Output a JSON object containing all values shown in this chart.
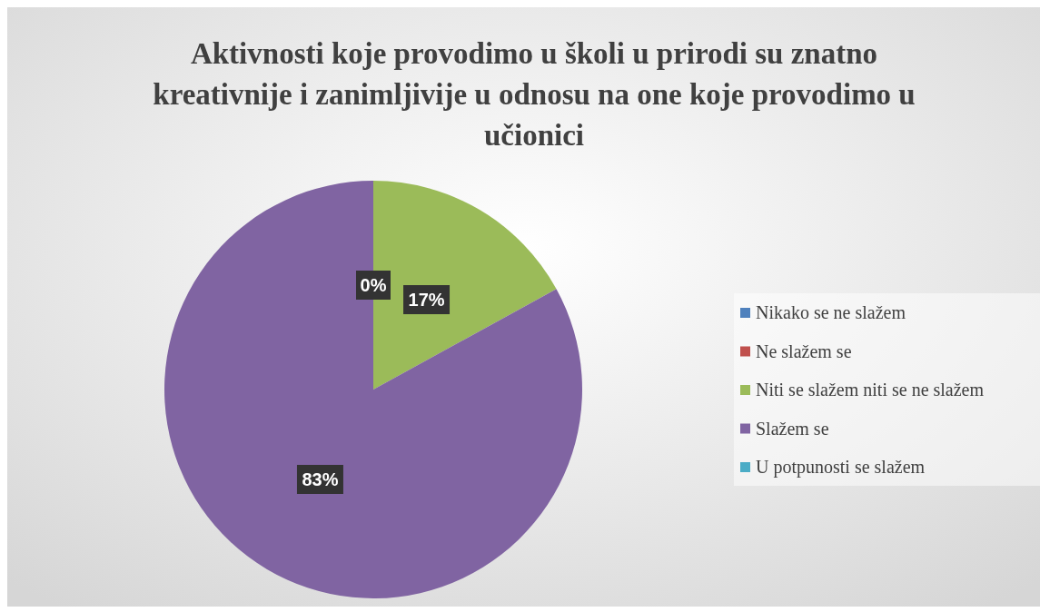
{
  "chart_data": {
    "type": "pie",
    "title": "Aktivnosti koje provodimo u školi u prirodi su znatno kreativnije i zanimljivije u odnosu na one koje provodimo u učionici",
    "categories": [
      "Nikako se ne slažem",
      "Ne slažem se",
      "Niti se slažem niti se ne slažem",
      "Slažem se",
      "U potpunosti se slažem"
    ],
    "values": [
      0,
      0,
      17,
      83,
      0
    ],
    "colors": [
      "#4f81bd",
      "#c0504d",
      "#9bbb59",
      "#8064a2",
      "#4bacc6"
    ],
    "value_labels": [
      "0%",
      null,
      "17%",
      "83%",
      null
    ],
    "legend": "right"
  }
}
